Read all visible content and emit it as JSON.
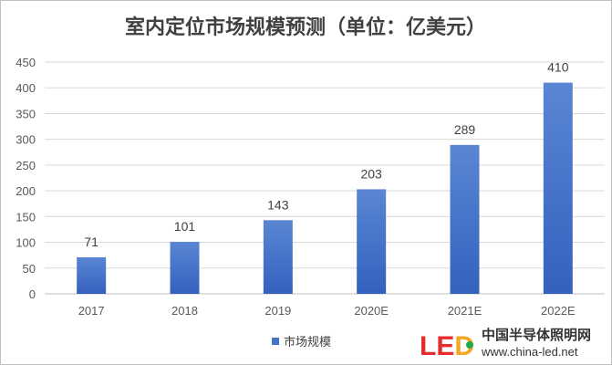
{
  "chart_data": {
    "type": "bar",
    "title": "室内定位市场规模预测（单位：亿美元）",
    "categories": [
      "2017",
      "2018",
      "2019",
      "2020E",
      "2021E",
      "2022E"
    ],
    "series": [
      {
        "name": "市场规模",
        "values": [
          71,
          101,
          143,
          203,
          289,
          410
        ]
      }
    ],
    "yticks": [
      0,
      50,
      100,
      150,
      200,
      250,
      300,
      350,
      400,
      450
    ],
    "ylim": [
      0,
      450
    ],
    "grid": true,
    "legend": "bottom",
    "data_labels": true,
    "bar_color": "#4472c4"
  },
  "watermark": {
    "logo": "LED",
    "site_name": "中国半导体照明网",
    "url": "www.china-led.net"
  }
}
